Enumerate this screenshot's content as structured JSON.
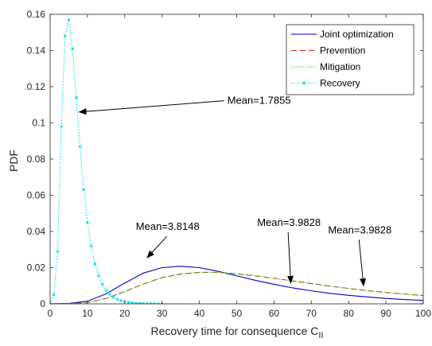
{
  "chart_data": {
    "type": "line",
    "title": "",
    "xlabel": "Recovery time for consequence C",
    "xlabel_subscript": "II",
    "ylabel": "PDF",
    "xlim": [
      0,
      100
    ],
    "ylim": [
      0,
      0.16
    ],
    "xticks": [
      0,
      10,
      20,
      30,
      40,
      50,
      60,
      70,
      80,
      90,
      100
    ],
    "yticks": [
      0,
      0.02,
      0.04,
      0.06,
      0.08,
      0.1,
      0.12,
      0.14,
      0.16
    ],
    "grid": false,
    "legend_position": "top-right",
    "series": [
      {
        "name": "Joint optimization",
        "color": "#0000cc",
        "style": "solid",
        "x": [
          0,
          5,
          10,
          15,
          20,
          25,
          30,
          35,
          40,
          45,
          50,
          55,
          60,
          65,
          70,
          75,
          80,
          85,
          90,
          95,
          100
        ],
        "y": [
          0,
          0.0002,
          0.0015,
          0.0055,
          0.0115,
          0.017,
          0.02,
          0.0208,
          0.02,
          0.018,
          0.0155,
          0.013,
          0.0108,
          0.0088,
          0.0072,
          0.0058,
          0.0047,
          0.0038,
          0.003,
          0.0024,
          0.0019
        ]
      },
      {
        "name": "Prevention",
        "color": "#cc3300",
        "style": "dashed",
        "x": [
          0,
          5,
          10,
          15,
          20,
          25,
          30,
          35,
          40,
          45,
          50,
          55,
          60,
          65,
          70,
          75,
          80,
          85,
          90,
          95,
          100
        ],
        "y": [
          0,
          0.0001,
          0.0007,
          0.003,
          0.0068,
          0.011,
          0.0145,
          0.0165,
          0.0174,
          0.0174,
          0.0166,
          0.0155,
          0.0141,
          0.0127,
          0.0112,
          0.0098,
          0.0085,
          0.0073,
          0.0063,
          0.0054,
          0.0046
        ]
      },
      {
        "name": "Mitigation",
        "color": "#33cc33",
        "style": "dotted",
        "x": [
          0,
          5,
          10,
          15,
          20,
          25,
          30,
          35,
          40,
          45,
          50,
          55,
          60,
          65,
          70,
          75,
          80,
          85,
          90,
          95,
          100
        ],
        "y": [
          0,
          0.0001,
          0.0007,
          0.003,
          0.0068,
          0.011,
          0.0145,
          0.0165,
          0.0174,
          0.0174,
          0.0166,
          0.0155,
          0.0141,
          0.0127,
          0.0112,
          0.0098,
          0.0085,
          0.0073,
          0.0063,
          0.0054,
          0.0046
        ]
      },
      {
        "name": "Recovery",
        "color": "#00e5e5",
        "style": "dotted-markers",
        "x": [
          0,
          1,
          2,
          3,
          4,
          5,
          6,
          7,
          8,
          9,
          10,
          11,
          12,
          13,
          14,
          15,
          16,
          17,
          18,
          19,
          20,
          21,
          22,
          23,
          24,
          25,
          26,
          27,
          28,
          29,
          30,
          35,
          40,
          50,
          60,
          70,
          80,
          90,
          100
        ],
        "y": [
          0,
          0.005,
          0.029,
          0.098,
          0.148,
          0.157,
          0.141,
          0.114,
          0.087,
          0.063,
          0.045,
          0.032,
          0.022,
          0.0155,
          0.0108,
          0.0075,
          0.0052,
          0.0036,
          0.0025,
          0.0018,
          0.0013,
          0.0009,
          0.0006,
          0.0004,
          0.0003,
          0.0002,
          0.00015,
          0.0001,
          7e-05,
          5e-05,
          3e-05,
          1e-05,
          0,
          0,
          0,
          0,
          0,
          0,
          0
        ]
      }
    ],
    "annotations": [
      {
        "text": "Mean=1.7855",
        "text_x": 56,
        "text_y": 0.1105,
        "arrow_x": 7.8,
        "arrow_y": 0.106
      },
      {
        "text": "Mean=3.8148",
        "text_x": 31.5,
        "text_y": 0.0408,
        "arrow_x": 26,
        "arrow_y": 0.0255
      },
      {
        "text": "Mean=3.9828",
        "text_x": 64,
        "text_y": 0.043,
        "arrow_x": 64.5,
        "arrow_y": 0.0115
      },
      {
        "text": "Mean=3.9828",
        "text_x": 83,
        "text_y": 0.039,
        "arrow_x": 84,
        "arrow_y": 0.01
      }
    ]
  }
}
